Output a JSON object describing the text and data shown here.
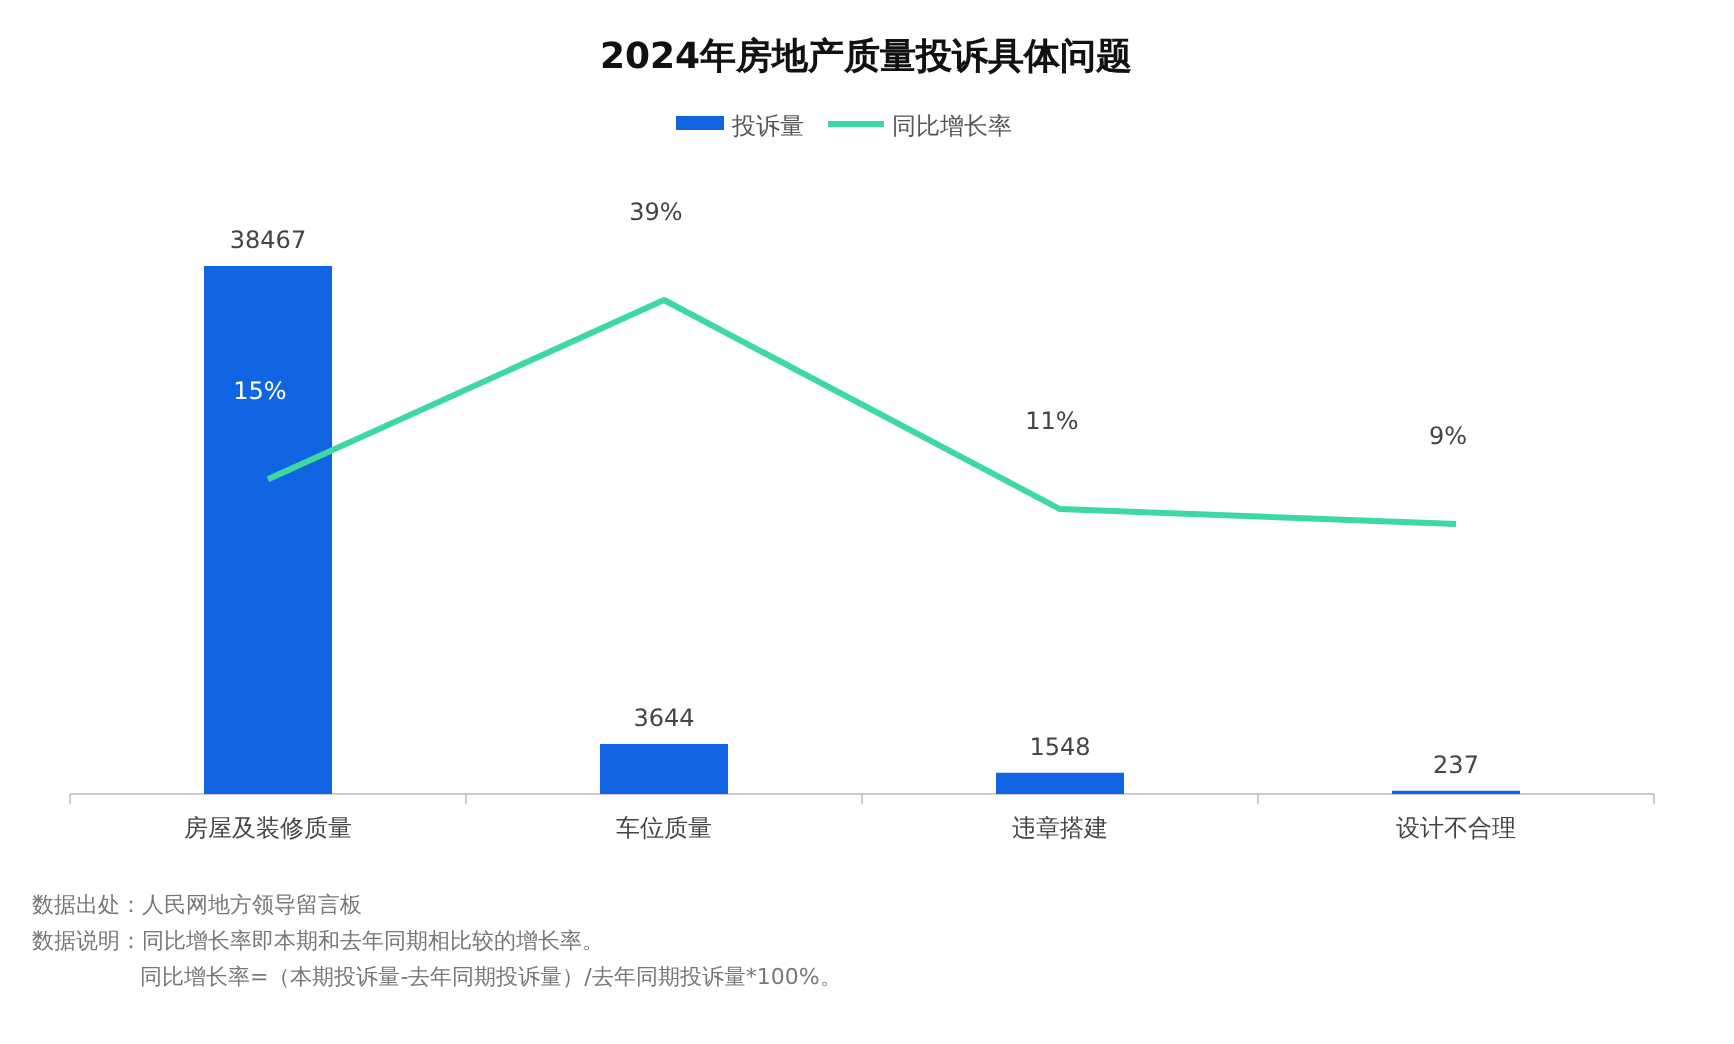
{
  "chart_data": {
    "type": "bar",
    "title": "2024年房地产质量投诉具体问题",
    "categories": [
      "房屋及装修质量",
      "车位质量",
      "违章搭建",
      "设计不合理"
    ],
    "series": [
      {
        "name": "投诉量",
        "color": "#1165e3",
        "values": [
          38467,
          3644,
          1548,
          237
        ]
      },
      {
        "name": "同比增长率",
        "type": "line",
        "axis": "y2",
        "color": "#3dd9a0",
        "values": [
          15,
          39,
          11,
          9
        ],
        "value_labels": [
          "15%",
          "39%",
          "11%",
          "9%"
        ]
      }
    ],
    "tick_labels": "x",
    "data_labels": true,
    "legend": "top",
    "marker": "none",
    "line_style": "solid",
    "annotations": [
      "数据出处：人民网地方领导留言板",
      "数据说明：同比增长率即本期和去年同期相比较的增长率。",
      "同比增长率=（本期投诉量-去年同期投诉量）/去年同期投诉量*100%。"
    ]
  }
}
